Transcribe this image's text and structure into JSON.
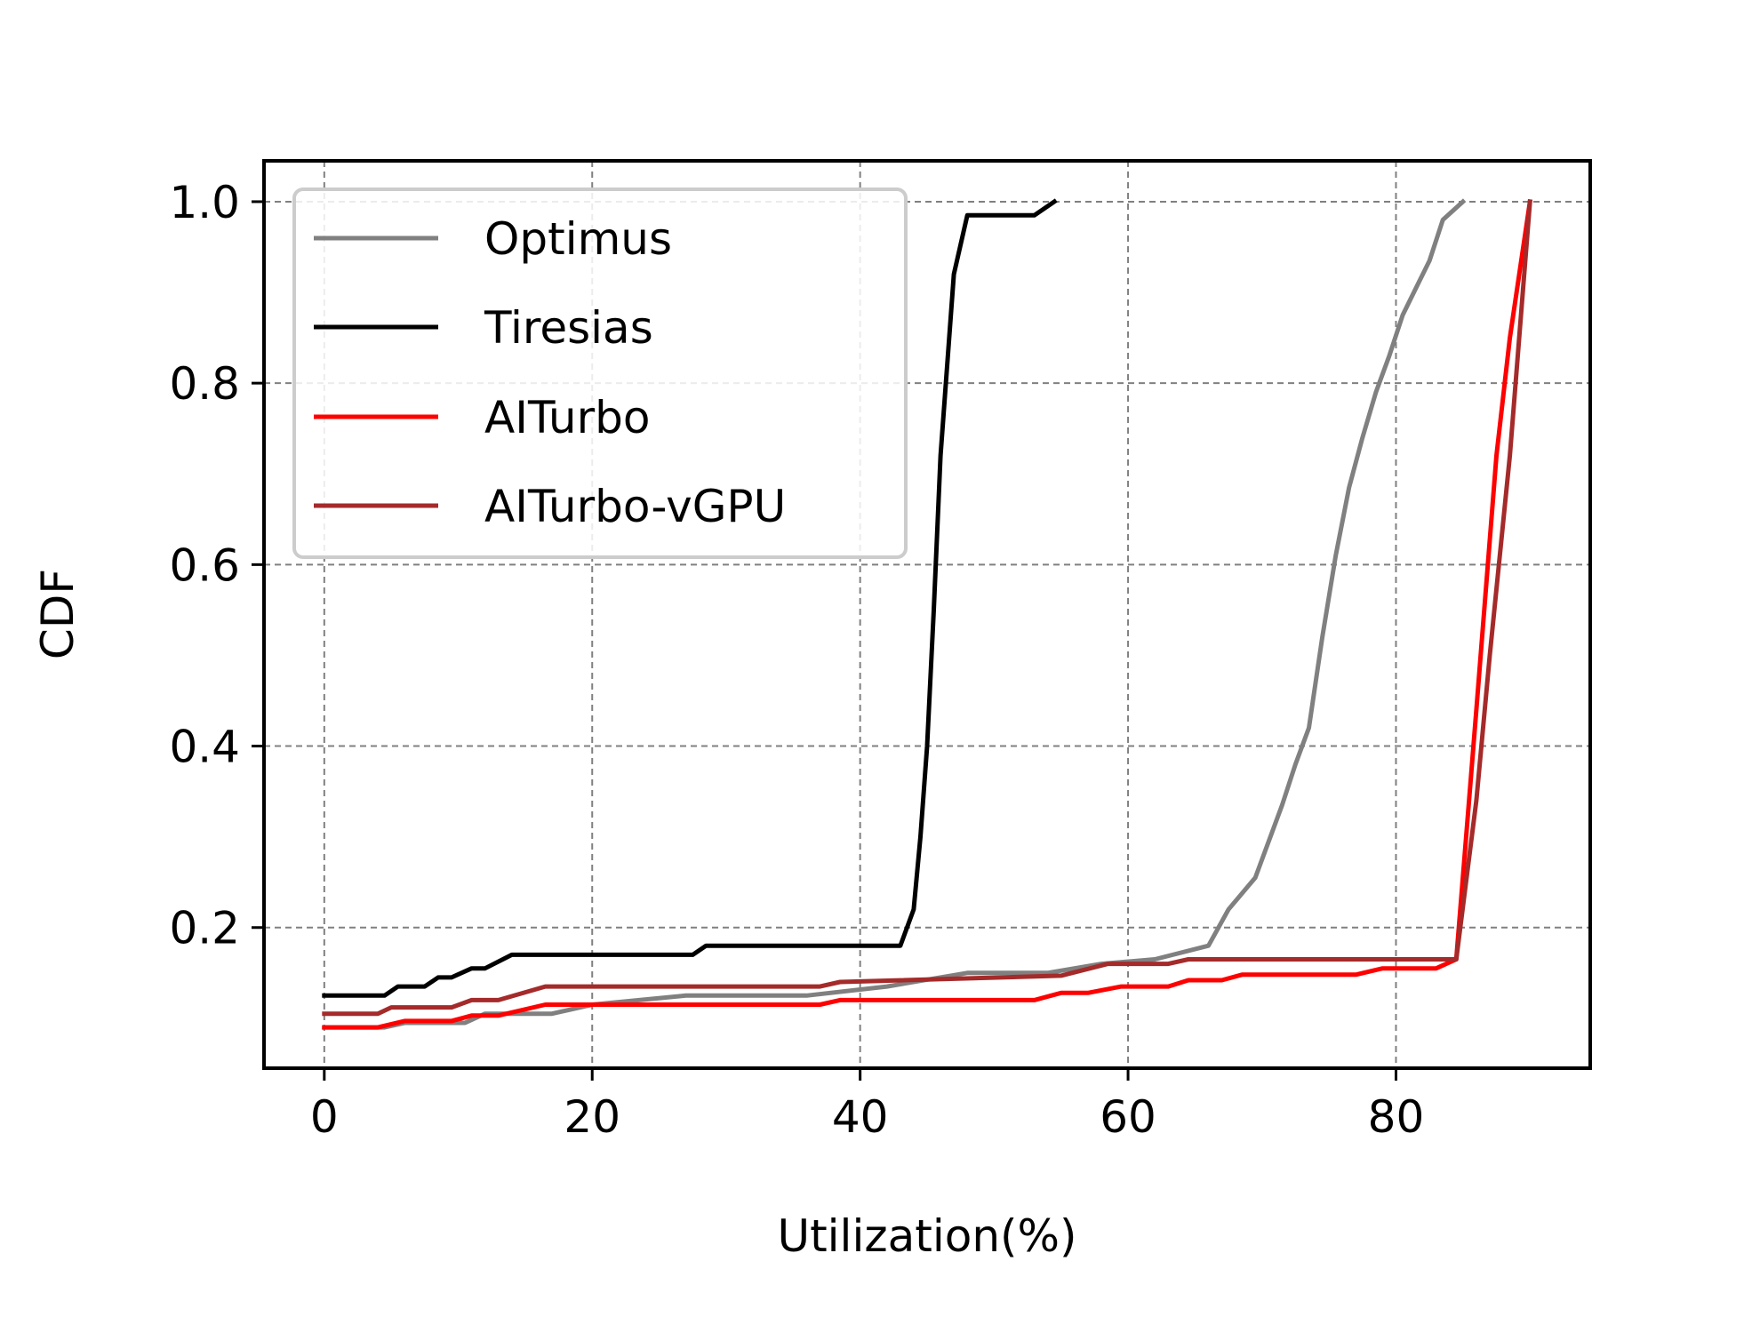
{
  "chart_data": {
    "type": "line",
    "title": "",
    "xlabel": "Utilization(%)",
    "ylabel": "CDF",
    "xlim": [
      -4.5,
      94.5
    ],
    "ylim": [
      0.045,
      1.045
    ],
    "xticks": [
      0,
      20,
      40,
      60,
      80
    ],
    "yticks": [
      0.2,
      0.4,
      0.6,
      0.8,
      1.0
    ],
    "xtick_labels": [
      "0",
      "20",
      "40",
      "60",
      "80"
    ],
    "ytick_labels": [
      "0.2",
      "0.4",
      "0.6",
      "0.8",
      "1.0"
    ],
    "grid": true,
    "legend_position": "upper-left",
    "series": [
      {
        "name": "Optimus",
        "color": "#808080",
        "x": [
          0,
          4.5,
          6,
          10.5,
          12,
          17,
          20,
          27,
          30,
          36,
          42,
          48,
          54,
          58,
          62,
          66,
          67.5,
          69.5,
          71.5,
          72.5,
          73.5,
          74.5,
          75.5,
          76.5,
          77.5,
          78.5,
          79.5,
          80.5,
          81.5,
          82.5,
          83.5,
          85
        ],
        "y": [
          0.09,
          0.09,
          0.095,
          0.095,
          0.105,
          0.105,
          0.115,
          0.125,
          0.125,
          0.125,
          0.135,
          0.15,
          0.15,
          0.16,
          0.165,
          0.18,
          0.22,
          0.255,
          0.335,
          0.38,
          0.42,
          0.52,
          0.61,
          0.685,
          0.74,
          0.79,
          0.83,
          0.875,
          0.905,
          0.935,
          0.98,
          1.0
        ]
      },
      {
        "name": "Tiresias",
        "color": "#000000",
        "x": [
          0,
          4.5,
          5.5,
          7.5,
          8.5,
          9.5,
          11,
          12,
          14,
          27.5,
          28.5,
          43,
          44,
          44.5,
          45,
          45.5,
          46,
          47,
          48,
          53,
          54.5
        ],
        "y": [
          0.125,
          0.125,
          0.135,
          0.135,
          0.145,
          0.145,
          0.155,
          0.155,
          0.17,
          0.17,
          0.18,
          0.18,
          0.22,
          0.3,
          0.4,
          0.55,
          0.72,
          0.92,
          0.985,
          0.985,
          1.0
        ]
      },
      {
        "name": "AITurbo",
        "color": "#ff0000",
        "x": [
          0,
          4,
          6,
          9.5,
          11,
          13,
          16.5,
          25,
          37,
          38.5,
          53,
          55,
          57,
          59.5,
          63,
          64.5,
          67,
          68.5,
          77,
          79,
          83,
          84.5,
          86,
          87.5,
          88.5,
          90
        ],
        "y": [
          0.09,
          0.09,
          0.097,
          0.097,
          0.103,
          0.103,
          0.115,
          0.115,
          0.115,
          0.12,
          0.12,
          0.128,
          0.128,
          0.135,
          0.135,
          0.142,
          0.142,
          0.148,
          0.148,
          0.155,
          0.155,
          0.165,
          0.44,
          0.72,
          0.85,
          1.0
        ]
      },
      {
        "name": "AITurbo-vGPU",
        "color": "#a52a2a",
        "x": [
          0,
          4,
          5,
          9.5,
          11,
          13,
          16.5,
          37,
          38.5,
          55,
          58.5,
          63,
          64.5,
          84.5,
          86,
          87,
          88.5,
          90
        ],
        "y": [
          0.105,
          0.105,
          0.112,
          0.112,
          0.12,
          0.12,
          0.135,
          0.135,
          0.14,
          0.147,
          0.16,
          0.16,
          0.165,
          0.165,
          0.34,
          0.5,
          0.72,
          1.0
        ]
      }
    ]
  }
}
